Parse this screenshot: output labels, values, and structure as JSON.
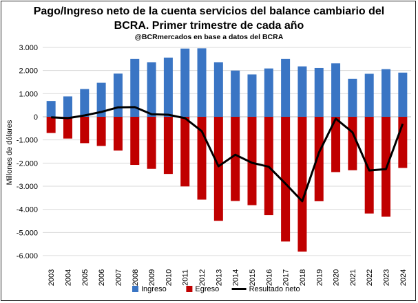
{
  "chart_data": {
    "type": "bar",
    "title_line1": "Pago/Ingreso neto de la cuenta servicios del balance cambiario del",
    "title_line2": "BCRA. Primer trimestre de cada año",
    "subtitle": "@BCRmercados en base a datos del BCRA",
    "ylabel": "Millones de dólares",
    "xlabel": "",
    "ylim": [
      -6000,
      3000
    ],
    "y_ticks": [
      3000,
      2000,
      1000,
      0,
      -1000,
      -2000,
      -3000,
      -4000,
      -5000,
      -6000
    ],
    "y_tick_labels": [
      "3.000",
      "2.000",
      "1.000",
      "0",
      "-1.000",
      "-2.000",
      "-3.000",
      "-4.000",
      "-5.000",
      "-6.000"
    ],
    "grid": true,
    "legend_position": "bottom",
    "categories": [
      "2003",
      "2004",
      "2005",
      "2006",
      "2007",
      "2008",
      "2009",
      "2010",
      "2011",
      "2012",
      "2013",
      "2014",
      "2015",
      "2016",
      "2017",
      "2018",
      "2019",
      "2020",
      "2021",
      "2022",
      "2023",
      "2024"
    ],
    "series": [
      {
        "name": "Ingreso",
        "kind": "bar",
        "color": "#3a75c4",
        "values": [
          680,
          880,
          1200,
          1470,
          1870,
          2500,
          2360,
          2560,
          2950,
          2960,
          2360,
          2000,
          1830,
          2090,
          2500,
          2180,
          2110,
          2310,
          1640,
          1860,
          2060,
          1910
        ]
      },
      {
        "name": "Egreso",
        "kind": "bar",
        "color": "#c00000",
        "values": [
          -700,
          -940,
          -1140,
          -1260,
          -1460,
          -2080,
          -2250,
          -2470,
          -3010,
          -3580,
          -4500,
          -3640,
          -3820,
          -4250,
          -5390,
          -5830,
          -3650,
          -2390,
          -2310,
          -4180,
          -4320,
          -2210
        ]
      },
      {
        "name": "Resultado neto",
        "kind": "line",
        "color": "#000000",
        "values": [
          -20,
          -60,
          60,
          210,
          410,
          420,
          110,
          90,
          -60,
          -620,
          -2140,
          -1640,
          -1990,
          -2160,
          -2890,
          -3650,
          -1540,
          -80,
          -670,
          -2320,
          -2260,
          -300
        ]
      }
    ]
  }
}
